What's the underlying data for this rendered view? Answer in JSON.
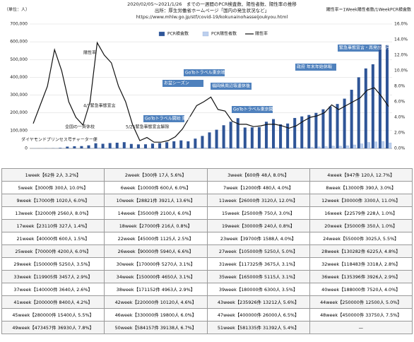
{
  "chart_data": {
    "type": "bar-line",
    "title": "2020/02/05〜2021/1/26　までの一週間のPCR検査数、陽性者数、陽性率の推移",
    "subtitle": "出所：厚生労働省ホームページ「国内の発生状況など」",
    "source_url": "https://www.mhlw.go.jp/stf/covid-19/kokunainohasseijoukyou.html",
    "y_label": "（単位：人）",
    "y2_label": "陽性率＝1Week陽性者数/1WeekPCR検査数",
    "ylim": [
      0,
      700000
    ],
    "yticks": [
      0,
      {
        "value": 100000,
        "label": "100,000"
      },
      {
        "value": 200000,
        "label": "200,000"
      },
      {
        "value": 300000,
        "label": "300,000"
      },
      {
        "value": 400000,
        "label": "400,000"
      },
      {
        "value": 500000,
        "label": "500,000"
      },
      {
        "value": 600000,
        "label": "600,000"
      },
      {
        "value": 700000,
        "label": "700,000"
      }
    ],
    "y2lim": [
      0,
      16
    ],
    "y2ticks": [
      {
        "value": 0,
        "label": "0.0%"
      },
      {
        "value": 2,
        "label": "2.0%"
      },
      {
        "value": 4,
        "label": "4.0%"
      },
      {
        "value": 6,
        "label": "6.0%"
      },
      {
        "value": 8,
        "label": "8.0%"
      },
      {
        "value": 10,
        "label": "10.0%"
      },
      {
        "value": 12,
        "label": "12.0%"
      },
      {
        "value": 14,
        "label": "14.0%"
      },
      {
        "value": 16,
        "label": "16.0%"
      }
    ],
    "grid": true,
    "series": [
      {
        "name": "PCR検査数",
        "kind": "bar",
        "color": "#2f5597",
        "values": [
          62,
          300,
          600,
          947,
          3000,
          10000,
          12000,
          13000,
          17000,
          28821,
          26000,
          30000,
          32000,
          35000,
          25000,
          22579,
          23110,
          27000,
          30000,
          35000,
          40000,
          45000,
          39700,
          55000,
          70000,
          90000,
          105000,
          130282,
          150000,
          170000,
          117325,
          118483,
          119905,
          150000,
          165000,
          135396,
          140000,
          171152,
          180000,
          188000,
          200000,
          220000,
          235926,
          250000,
          280000,
          330000,
          400000,
          450000,
          473457,
          584157,
          581335
        ]
      },
      {
        "name": "PCR陽性者数",
        "kind": "bar",
        "color": "#bdd0ee",
        "values": [
          2,
          17,
          48,
          120,
          300,
          600,
          480,
          390,
          1020,
          3921,
          3120,
          3300,
          2560,
          2100,
          750,
          228,
          327,
          216,
          240,
          350,
          600,
          1125,
          1588,
          3025,
          4200,
          5940,
          5250,
          6225,
          5250,
          5270,
          3675,
          3318,
          3457,
          4650,
          5115,
          3926,
          3640,
          4963,
          6300,
          7520,
          8400,
          10120,
          13212,
          12500,
          15400,
          19800,
          26000,
          33750,
          36930,
          39138,
          31392
        ]
      },
      {
        "name": "陽性率",
        "kind": "line",
        "axis": "y2",
        "color": "#111111",
        "values": [
          3.2,
          5.6,
          8.0,
          12.7,
          10.0,
          6.0,
          4.0,
          3.0,
          6.0,
          13.6,
          12.0,
          11.0,
          8.0,
          6.0,
          3.0,
          1.0,
          1.4,
          0.8,
          0.8,
          1.0,
          1.5,
          2.5,
          4.0,
          5.5,
          6.0,
          6.6,
          5.0,
          4.8,
          3.5,
          3.1,
          3.1,
          2.8,
          2.9,
          3.1,
          3.1,
          2.9,
          2.6,
          2.9,
          3.5,
          4.0,
          4.2,
          4.6,
          5.6,
          5.0,
          5.5,
          6.0,
          6.5,
          7.5,
          7.8,
          6.7,
          5.4
        ]
      }
    ],
    "annotations": [
      "陽性率",
      "ダイヤモンドプリンセス号チャーター便",
      "全国の一斉休校",
      "4/7緊急事態宣言",
      "5/25緊急事態宣言解除",
      "GoToトラベル開始 東京都は除外",
      "お盆シーズン",
      "GoToトラベル東京地区開始後",
      "福岡県周辺等連休後",
      "GoToトラベル東京開始",
      "政府 年末年始休暇",
      "緊急事態宣言・再発出 1月8日"
    ]
  },
  "table": {
    "rows": [
      [
        "1week【62件 2人 3.2%】",
        "2week【300件 17人 5.6%】",
        "3week【600件 48人 8.0%】",
        "4week【947件 120人 12.7%】"
      ],
      [
        "5week【3000件 300人 10.0%】",
        "6week【10000件 600人 6.0%】",
        "7week【12000件 480人 4.0%】",
        "8week【13000件 390人 3.0%】"
      ],
      [
        "9week【17000件 1020人 6.0%】",
        "10week【28821件 3921人 13.6%】",
        "11week【26000件 3120人 12.0%】",
        "12week【30000件 3300人 11.0%】"
      ],
      [
        "13week【32000件 2560人 8.0%】",
        "14week【35000件 2100人 6.0%】",
        "15week【25000件 750人 3.0%】",
        "16week【22579件 228人 1.0%】"
      ],
      [
        "17week【23110件 327人 1.4%】",
        "18week【27000件 216人 0.8%】",
        "19week【30000件 240人 0.8%】",
        "20week【35000件 350人 1.0%】"
      ],
      [
        "21week【40000件 600人 1.5%】",
        "22week【45000件 1125人 2.5%】",
        "23week【39700件 1588人 4.0%】",
        "24week【55000件 3025人 5.5%】"
      ],
      [
        "25week【70000件 4200人 6.0%】",
        "26week【90000件 5940人 6.6%】",
        "27week【105000件 5250人 5.0%】",
        "28week【130282件 6225人 4.8%】"
      ],
      [
        "29week【150000件 5250人 3.5%】",
        "30week【170000件 5270人 3.1%】",
        "31week【117325件 3675人 3.1%】",
        "32week【118483件 3318人 2.8%】"
      ],
      [
        "33week【119905件 3457人 2.9%】",
        "34week【150000件 4650人 3.1%】",
        "35week【165000件 5115人 3.1%】",
        "36week【135396件 3926人 2.9%】"
      ],
      [
        "37week【140000件 3640人 2.6%】",
        "38week【171152件 4963人 2.9%】",
        "39week【180000件 6300人 3.5%】",
        "40week【188000件 7520人 4.0%】"
      ],
      [
        "41week【200000件 8400人 4.2%】",
        "42week【220000件 10120人 4.6%】",
        "43week【235926件 13212人 5.6%】",
        "44week【250000件 12500人 5.0%】"
      ],
      [
        "45week【280000件 15400人 5.5%】",
        "46week【330000件 19800人 6.0%】",
        "47week【400000件 26000人 6.5%】",
        "48week【450000件 33750人 7.5%】"
      ],
      [
        "49week【473457件 36930人 7.8%】",
        "50week【584157件 39138人 6.7%】",
        "51week【581335件 31392人 5.4%】",
        "—"
      ]
    ]
  }
}
